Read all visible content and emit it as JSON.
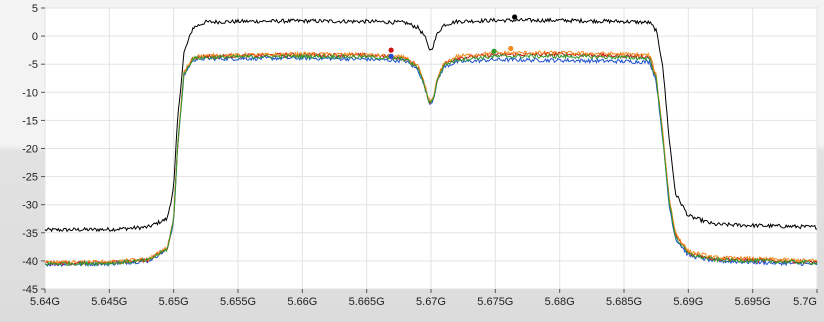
{
  "chart_data": {
    "type": "line",
    "title": "",
    "xlabel": "",
    "ylabel": "",
    "xlim": [
      5.64,
      5.7
    ],
    "ylim": [
      -45,
      5
    ],
    "x_tick_labels": [
      "5.64G",
      "5.645G",
      "5.65G",
      "5.655G",
      "5.66G",
      "5.665G",
      "5.67G",
      "5.675G",
      "5.68G",
      "5.685G",
      "5.69G",
      "5.695G",
      "5.7G"
    ],
    "x_ticks": [
      5.64,
      5.645,
      5.65,
      5.655,
      5.66,
      5.665,
      5.67,
      5.675,
      5.68,
      5.685,
      5.69,
      5.695,
      5.7
    ],
    "y_tick_labels": [
      "5",
      "0",
      "-5",
      "-10",
      "-15",
      "-20",
      "-25",
      "-30",
      "-35",
      "-40",
      "-45"
    ],
    "y_ticks": [
      5,
      0,
      -5,
      -10,
      -15,
      -20,
      -25,
      -30,
      -35,
      -40,
      -45
    ],
    "grid": true,
    "series": [
      {
        "color": "#000000",
        "x": [
          5.64,
          5.645,
          5.648,
          5.6495,
          5.65,
          5.6503,
          5.6508,
          5.6515,
          5.6525,
          5.655,
          5.66,
          5.665,
          5.668,
          5.669,
          5.6695,
          5.6698,
          5.67,
          5.6702,
          5.6705,
          5.671,
          5.672,
          5.675,
          5.68,
          5.685,
          5.687,
          5.6875,
          5.688,
          5.6885,
          5.689,
          5.69,
          5.692,
          5.7
        ],
        "y": [
          -34.5,
          -34.4,
          -34.0,
          -32.5,
          -27,
          -15,
          -3,
          1.5,
          2.5,
          2.6,
          2.7,
          2.6,
          2.4,
          1.5,
          0,
          -2,
          -2.5,
          -1.5,
          0.5,
          2.0,
          2.6,
          2.8,
          2.8,
          2.6,
          2.4,
          1.0,
          -5,
          -18,
          -28,
          -32,
          -33.5,
          -34.0
        ],
        "marker": {
          "x": 5.6765,
          "y": 3.4
        }
      },
      {
        "color": "#1f4fd0",
        "x": [
          5.64,
          5.645,
          5.648,
          5.6495,
          5.65,
          5.6503,
          5.6508,
          5.6515,
          5.6525,
          5.655,
          5.66,
          5.665,
          5.668,
          5.669,
          5.6695,
          5.6698,
          5.67,
          5.6702,
          5.6705,
          5.671,
          5.672,
          5.675,
          5.68,
          5.685,
          5.687,
          5.6875,
          5.688,
          5.6885,
          5.689,
          5.69,
          5.692,
          5.7
        ],
        "y": [
          -40.6,
          -40.5,
          -40.0,
          -38,
          -33,
          -20,
          -7,
          -4.2,
          -4.0,
          -4.0,
          -3.9,
          -4.1,
          -4.4,
          -6,
          -9,
          -11.5,
          -12.0,
          -11,
          -8,
          -5.5,
          -4.6,
          -4.2,
          -4.3,
          -4.5,
          -4.6,
          -8,
          -18,
          -30,
          -36,
          -39,
          -40,
          -40.6
        ],
        "marker": {
          "x": 5.6669,
          "y": -3.6
        }
      },
      {
        "color": "#cc1111",
        "x": [
          5.64,
          5.645,
          5.648,
          5.6495,
          5.65,
          5.6503,
          5.6508,
          5.6515,
          5.6525,
          5.655,
          5.66,
          5.665,
          5.668,
          5.669,
          5.6695,
          5.6698,
          5.67,
          5.6702,
          5.6705,
          5.671,
          5.672,
          5.675,
          5.68,
          5.685,
          5.687,
          5.6875,
          5.688,
          5.6885,
          5.689,
          5.69,
          5.692,
          5.7
        ],
        "y": [
          -40.4,
          -40.3,
          -39.8,
          -37.8,
          -32.6,
          -19.6,
          -6.6,
          -3.8,
          -3.6,
          -3.5,
          -3.3,
          -3.4,
          -3.9,
          -5.5,
          -8.7,
          -11.3,
          -11.8,
          -10.8,
          -7.6,
          -5.0,
          -3.9,
          -3.3,
          -3.2,
          -3.5,
          -3.7,
          -7.4,
          -17.2,
          -29,
          -35.4,
          -38.6,
          -39.6,
          -40.2
        ],
        "marker": {
          "x": 5.6669,
          "y": -2.5
        }
      },
      {
        "color": "#f28a1c",
        "x": [
          5.64,
          5.645,
          5.648,
          5.6495,
          5.65,
          5.6503,
          5.6508,
          5.6515,
          5.6525,
          5.655,
          5.66,
          5.665,
          5.668,
          5.669,
          5.6695,
          5.6698,
          5.67,
          5.6702,
          5.6705,
          5.671,
          5.672,
          5.675,
          5.68,
          5.685,
          5.687,
          5.6875,
          5.688,
          5.6885,
          5.689,
          5.69,
          5.692,
          5.7
        ],
        "y": [
          -40.3,
          -40.2,
          -39.7,
          -37.7,
          -32.5,
          -19.5,
          -6.5,
          -3.7,
          -3.5,
          -3.4,
          -3.2,
          -3.3,
          -3.8,
          -5.4,
          -8.6,
          -11.2,
          -11.7,
          -10.7,
          -7.5,
          -4.9,
          -3.6,
          -3.0,
          -3.0,
          -3.2,
          -3.4,
          -7.0,
          -16.8,
          -28.6,
          -35.0,
          -38.3,
          -39.4,
          -40.0
        ],
        "marker": {
          "x": 5.6762,
          "y": -2.2
        }
      },
      {
        "color": "#2f9a2f",
        "x": [
          5.64,
          5.645,
          5.648,
          5.6495,
          5.65,
          5.6503,
          5.6508,
          5.6515,
          5.6525,
          5.655,
          5.66,
          5.665,
          5.668,
          5.669,
          5.6695,
          5.6698,
          5.67,
          5.6702,
          5.6705,
          5.671,
          5.672,
          5.675,
          5.68,
          5.685,
          5.687,
          5.6875,
          5.688,
          5.6885,
          5.689,
          5.69,
          5.692,
          5.7
        ],
        "y": [
          -40.5,
          -40.4,
          -39.9,
          -37.9,
          -32.8,
          -19.8,
          -6.8,
          -4.0,
          -3.8,
          -3.7,
          -3.6,
          -3.7,
          -4.1,
          -5.7,
          -8.9,
          -11.4,
          -11.9,
          -10.9,
          -7.8,
          -5.2,
          -4.2,
          -3.6,
          -3.6,
          -3.8,
          -4.0,
          -7.6,
          -17.6,
          -29.4,
          -35.7,
          -38.8,
          -39.8,
          -40.3
        ],
        "marker": {
          "x": 5.6749,
          "y": -2.7
        }
      }
    ]
  }
}
